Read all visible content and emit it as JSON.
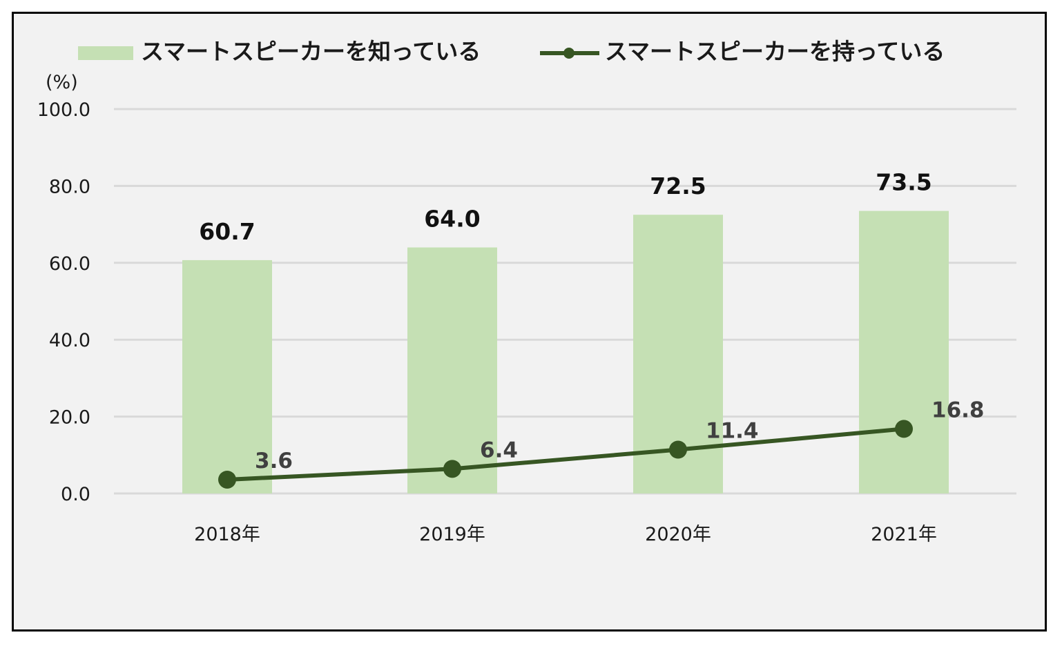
{
  "chart_data": {
    "type": "bar",
    "categories": [
      "2018年",
      "2019年",
      "2020年",
      "2021年"
    ],
    "series": [
      {
        "name": "スマートスピーカーを知っている",
        "kind": "bar",
        "values": [
          60.7,
          64.0,
          72.5,
          73.5
        ],
        "color": "#c5e0b4"
      },
      {
        "name": "スマートスピーカーを持っている",
        "kind": "line",
        "values": [
          3.6,
          6.4,
          11.4,
          16.8
        ],
        "color": "#375623"
      }
    ],
    "ylabel": "(%)",
    "ylim": [
      0,
      100
    ],
    "yticks": [
      "0.0",
      "20.0",
      "40.0",
      "60.0",
      "80.0",
      "100.0"
    ],
    "bar_labels": [
      "60.7",
      "64.0",
      "72.5",
      "73.5"
    ],
    "line_labels": [
      "3.6",
      "6.4",
      "11.4",
      "16.8"
    ],
    "grid": true,
    "legend_position": "top"
  }
}
